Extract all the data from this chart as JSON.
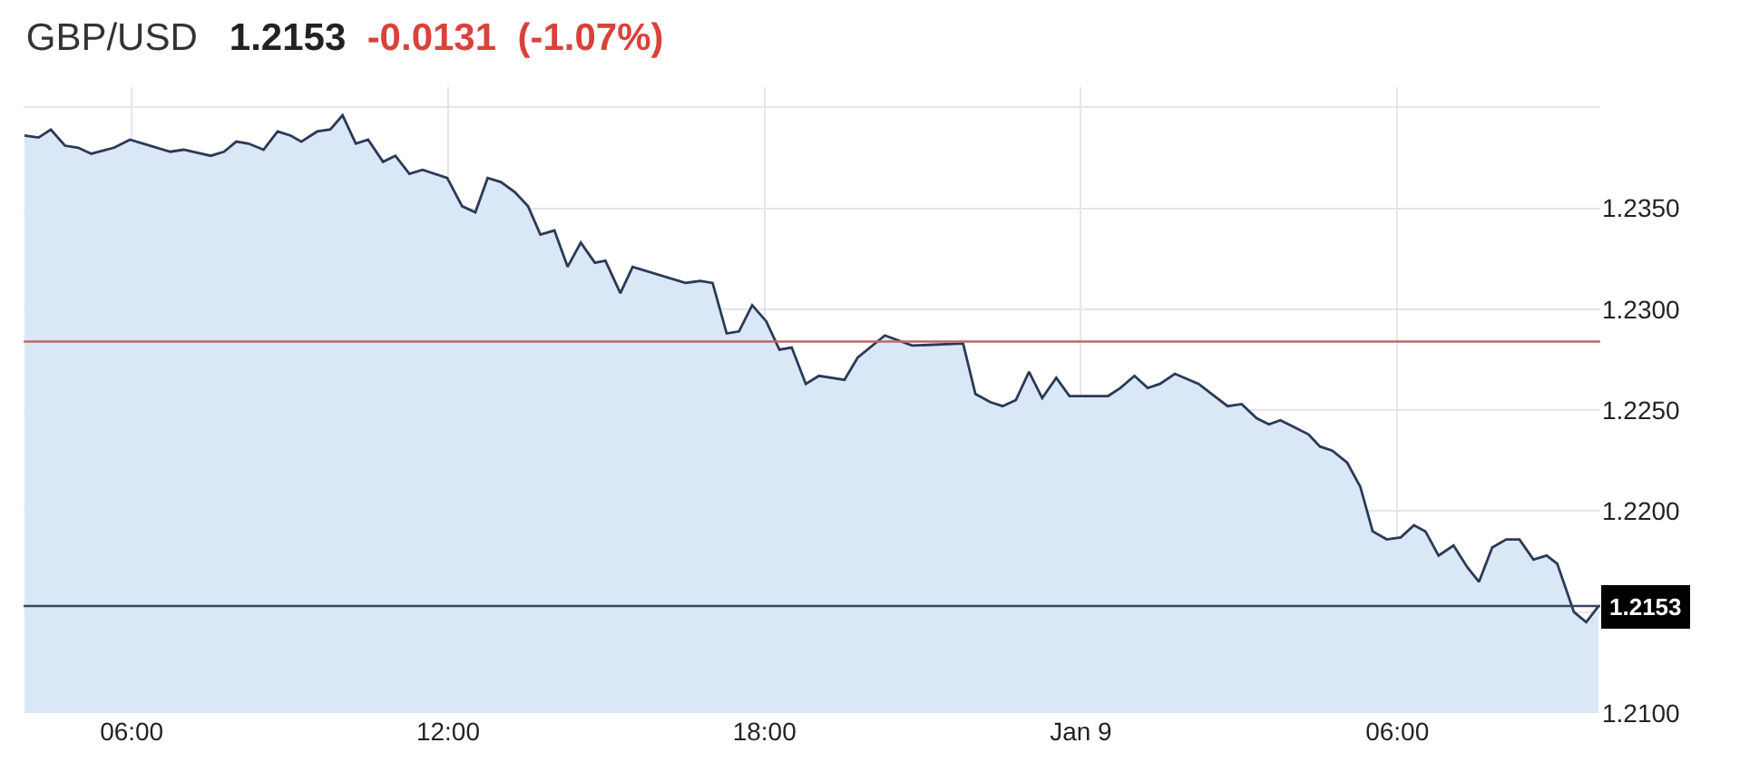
{
  "chart_data": {
    "type": "area",
    "title": "GBP/USD",
    "annotations": [
      "1.2153",
      "-0.0131",
      "(-1.07%)"
    ],
    "x": [
      "--01-08T03:58",
      "--01-08T04:14",
      "--01-08T04:28",
      "--01-08T04:44",
      "--01-08T04:59",
      "--01-08T05:14",
      "--01-08T05:40",
      "--01-08T05:58",
      "--01-08T06:21",
      "--01-08T06:44",
      "--01-08T06:59",
      "--01-08T07:30",
      "--01-08T07:45",
      "--01-08T07:59",
      "--01-08T08:13",
      "--01-08T08:30",
      "--01-08T08:46",
      "--01-08T09:01",
      "--01-08T09:13",
      "--01-08T09:31",
      "--01-08T09:46",
      "--01-08T10:00",
      "--01-08T10:15",
      "--01-08T10:29",
      "--01-08T10:46",
      "--01-08T11:00",
      "--01-08T11:16",
      "--01-08T11:31",
      "--01-08T11:59",
      "--01-08T12:16",
      "--01-08T12:31",
      "--01-08T12:45",
      "--01-08T13:00",
      "--01-08T13:16",
      "--01-08T13:31",
      "--01-08T13:45",
      "--01-08T14:01",
      "--01-08T14:16",
      "--01-08T14:31",
      "--01-08T14:47",
      "--01-08T14:59",
      "--01-08T15:16",
      "--01-08T15:30",
      "--01-08T16:30",
      "--01-08T16:47",
      "--01-08T17:01",
      "--01-08T17:17",
      "--01-08T17:31",
      "--01-08T17:46",
      "--01-08T18:02",
      "--01-08T18:17",
      "--01-08T18:31",
      "--01-08T18:47",
      "--01-08T19:02",
      "--01-08T19:31",
      "--01-08T19:46",
      "--01-08T20:17",
      "--01-08T20:48",
      "--01-08T21:46",
      "--01-08T22:00",
      "--01-08T22:17",
      "--01-08T22:31",
      "--01-08T22:46",
      "--01-08T23:01",
      "--01-08T23:16",
      "--01-08T23:32",
      "--01-08T23:47",
      "--01-09T00:31",
      "--01-09T00:45",
      "--01-09T01:01",
      "--01-09T01:16",
      "--01-09T01:30",
      "--01-09T01:47",
      "--01-09T02:14",
      "--01-09T02:32",
      "--01-09T02:47",
      "--01-09T03:03",
      "--01-09T03:20",
      "--01-09T03:34",
      "--01-09T03:47",
      "--01-09T04:01",
      "--01-09T04:19",
      "--01-09T04:32",
      "--01-09T04:46",
      "--01-09T05:03",
      "--01-09T05:18",
      "--01-09T05:32",
      "--01-09T05:48",
      "--01-09T06:04",
      "--01-09T06:19",
      "--01-09T06:32",
      "--01-09T06:47",
      "--01-09T07:04",
      "--01-09T07:20",
      "--01-09T07:33",
      "--01-09T07:48",
      "--01-09T08:04",
      "--01-09T08:19",
      "--01-09T08:35",
      "--01-09T08:50",
      "--01-09T09:02",
      "--01-09T09:21",
      "--01-09T09:35",
      "--01-09T09:49"
    ],
    "series": [
      {
        "color": "#2b3a55",
        "values": [
          1.2386,
          1.2385,
          1.2389,
          1.2381,
          1.238,
          1.2377,
          1.238,
          1.2384,
          1.2381,
          1.2378,
          1.2379,
          1.2376,
          1.2378,
          1.2383,
          1.2382,
          1.2379,
          1.2388,
          1.2386,
          1.2383,
          1.2388,
          1.2389,
          1.2396,
          1.2382,
          1.2384,
          1.2373,
          1.2376,
          1.2367,
          1.2369,
          1.2365,
          1.2351,
          1.2348,
          1.2365,
          1.2363,
          1.2358,
          1.2351,
          1.2337,
          1.2339,
          1.2321,
          1.2333,
          1.2323,
          1.2324,
          1.2308,
          1.2321,
          1.2313,
          1.2314,
          1.2313,
          1.2288,
          1.2289,
          1.2302,
          1.2294,
          1.228,
          1.2281,
          1.2263,
          1.2267,
          1.2265,
          1.2276,
          1.2287,
          1.2282,
          1.2283,
          1.2258,
          1.2254,
          1.2252,
          1.2255,
          1.2269,
          1.2256,
          1.2266,
          1.2257,
          1.2257,
          1.2261,
          1.2267,
          1.2261,
          1.2263,
          1.2268,
          1.2263,
          1.2257,
          1.2252,
          1.2253,
          1.2246,
          1.2243,
          1.2245,
          1.2242,
          1.2238,
          1.2232,
          1.223,
          1.2224,
          1.2212,
          1.219,
          1.2186,
          1.2187,
          1.2193,
          1.219,
          1.2178,
          1.2183,
          1.2172,
          1.2165,
          1.2182,
          1.2186,
          1.2186,
          1.2176,
          1.2178,
          1.2174,
          1.215,
          1.2145,
          1.2153
        ]
      }
    ],
    "xlim": [
      "--01-08T03:57",
      "--01-09T09:51"
    ],
    "xticks": [
      {
        "value": "--01-08T06:00",
        "label": "06:00"
      },
      {
        "value": "--01-08T12:00",
        "label": "12:00"
      },
      {
        "value": "--01-08T18:00",
        "label": "18:00"
      },
      {
        "value": "--01-09T00:00",
        "label": "Jan 9"
      },
      {
        "value": "--01-09T06:00",
        "label": "06:00"
      }
    ],
    "ylim": [
      1.21,
      1.241
    ],
    "yticks": [
      {
        "value": 1.21,
        "label": "1.2100"
      },
      {
        "value": 1.215,
        "label": null
      },
      {
        "value": 1.22,
        "label": "1.2200"
      },
      {
        "value": 1.225,
        "label": "1.2250"
      },
      {
        "value": 1.23,
        "label": "1.2300"
      },
      {
        "value": 1.235,
        "label": "1.2350"
      },
      {
        "value": 1.24,
        "label": null
      }
    ],
    "ref_lines": [
      {
        "axis": "y",
        "value": 1.2284,
        "color": "#c0666a"
      },
      {
        "axis": "y",
        "value": 1.2153,
        "label": "1.2153",
        "color": "#3a4560"
      }
    ],
    "grid": true
  }
}
